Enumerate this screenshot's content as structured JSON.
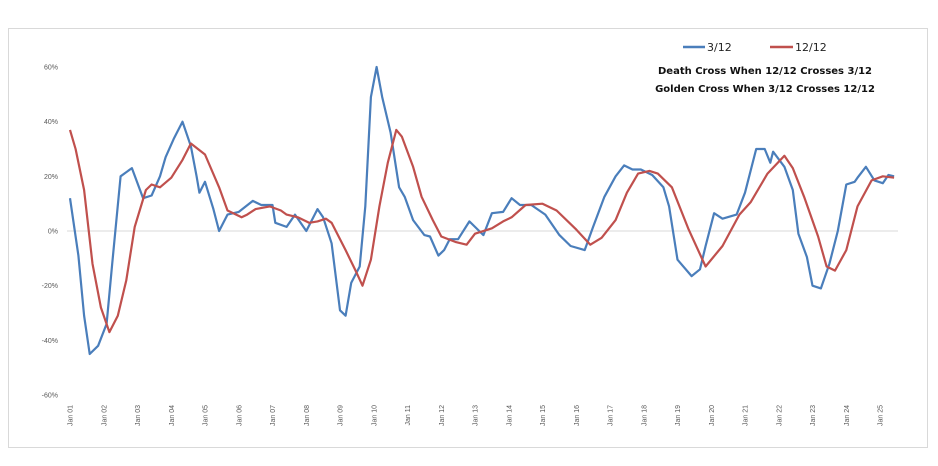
{
  "chart_data": {
    "type": "line",
    "title": "",
    "xlabel": "",
    "ylabel": "",
    "ylim": [
      -60,
      60
    ],
    "xlim": [
      "2001-01",
      "2025-07"
    ],
    "grid": false,
    "zero_line": true,
    "legend_position": "top-right",
    "y_ticks": [
      "-60%",
      "-40%",
      "-20%",
      "0%",
      "20%",
      "40%",
      "60%"
    ],
    "y_tick_values": [
      -60,
      -40,
      -20,
      0,
      20,
      40,
      60
    ],
    "x_ticks": [
      "Jan 01",
      "Jan 02",
      "Jan 03",
      "Jan 04",
      "Jan 05",
      "Jan 06",
      "Jan 07",
      "Jan 08",
      "Jan 09",
      "Jan 10",
      "Jan 11",
      "Jan 12",
      "Jan 13",
      "Jan 14",
      "Jan 15",
      "Jan 16",
      "Jan 17",
      "Jan 18",
      "Jan 19",
      "Jan 20",
      "Jan 21",
      "Jan 22",
      "Jan 23",
      "Jan 24",
      "Jan 25"
    ],
    "annotations": [
      "Death Cross When 12/12 Crosses 3/12",
      "Golden Cross When 3/12 Crosses 12/12"
    ],
    "series": [
      {
        "name": "3/12",
        "color": "#4a7ebb",
        "points": [
          [
            "2001-01",
            12
          ],
          [
            "2001-04",
            -9
          ],
          [
            "2001-06",
            -31
          ],
          [
            "2001-08",
            -45
          ],
          [
            "2001-11",
            -42
          ],
          [
            "2002-02",
            -34
          ],
          [
            "2002-04",
            -12
          ],
          [
            "2002-07",
            20
          ],
          [
            "2002-11",
            23
          ],
          [
            "2003-03",
            12
          ],
          [
            "2003-06",
            13
          ],
          [
            "2003-09",
            20
          ],
          [
            "2003-11",
            27
          ],
          [
            "2004-02",
            34
          ],
          [
            "2004-05",
            40
          ],
          [
            "2004-08",
            31
          ],
          [
            "2004-10",
            20
          ],
          [
            "2004-11",
            14
          ],
          [
            "2005-01",
            18
          ],
          [
            "2005-04",
            8
          ],
          [
            "2005-06",
            0
          ],
          [
            "2005-09",
            6
          ],
          [
            "2006-01",
            7
          ],
          [
            "2006-06",
            11
          ],
          [
            "2006-09",
            9.5
          ],
          [
            "2007-01",
            9.5
          ],
          [
            "2007-02",
            3
          ],
          [
            "2007-06",
            1.5
          ],
          [
            "2007-09",
            6
          ],
          [
            "2008-01",
            0
          ],
          [
            "2008-05",
            8
          ],
          [
            "2008-07",
            5
          ],
          [
            "2008-10",
            -4.5
          ],
          [
            "2009-01",
            -29
          ],
          [
            "2009-03",
            -31
          ],
          [
            "2009-05",
            -19
          ],
          [
            "2009-08",
            -13
          ],
          [
            "2009-10",
            9
          ],
          [
            "2009-12",
            49
          ],
          [
            "2010-02",
            60
          ],
          [
            "2010-04",
            49
          ],
          [
            "2010-07",
            36
          ],
          [
            "2010-10",
            16
          ],
          [
            "2010-12",
            12.5
          ],
          [
            "2011-03",
            4
          ],
          [
            "2011-07",
            -1.5
          ],
          [
            "2011-09",
            -2
          ],
          [
            "2011-12",
            -9
          ],
          [
            "2012-02",
            -7
          ],
          [
            "2012-04",
            -3
          ],
          [
            "2012-07",
            -3
          ],
          [
            "2012-11",
            3.5
          ],
          [
            "2013-01",
            1.5
          ],
          [
            "2013-04",
            -1.5
          ],
          [
            "2013-07",
            6.5
          ],
          [
            "2013-11",
            7
          ],
          [
            "2014-02",
            12
          ],
          [
            "2014-05",
            9.5
          ],
          [
            "2014-09",
            9.5
          ],
          [
            "2015-02",
            6
          ],
          [
            "2015-07",
            -1.5
          ],
          [
            "2015-11",
            -5.5
          ],
          [
            "2016-04",
            -7
          ],
          [
            "2016-07",
            1.5
          ],
          [
            "2016-11",
            12.5
          ],
          [
            "2017-03",
            20
          ],
          [
            "2017-06",
            24
          ],
          [
            "2017-09",
            22.5
          ],
          [
            "2017-12",
            22.5
          ],
          [
            "2018-04",
            20.5
          ],
          [
            "2018-08",
            16
          ],
          [
            "2018-10",
            9
          ],
          [
            "2019-01",
            -10.5
          ],
          [
            "2019-06",
            -16.5
          ],
          [
            "2019-09",
            -14
          ],
          [
            "2019-11",
            -5.5
          ],
          [
            "2020-02",
            6.5
          ],
          [
            "2020-05",
            4.5
          ],
          [
            "2020-10",
            6
          ],
          [
            "2021-01",
            14
          ],
          [
            "2021-05",
            30
          ],
          [
            "2021-08",
            30
          ],
          [
            "2021-10",
            25
          ],
          [
            "2021-11",
            29
          ],
          [
            "2022-03",
            23.5
          ],
          [
            "2022-06",
            15
          ],
          [
            "2022-08",
            -1
          ],
          [
            "2022-11",
            -9.5
          ],
          [
            "2023-01",
            -20
          ],
          [
            "2023-04",
            -21
          ],
          [
            "2023-07",
            -12
          ],
          [
            "2023-10",
            0
          ],
          [
            "2024-01",
            17
          ],
          [
            "2024-04",
            18
          ],
          [
            "2024-05",
            19.5
          ],
          [
            "2024-08",
            23.5
          ],
          [
            "2024-11",
            18.5
          ],
          [
            "2025-02",
            17.5
          ],
          [
            "2025-04",
            20.5
          ],
          [
            "2025-06",
            20
          ]
        ]
      },
      {
        "name": "12/12",
        "color": "#c0504d",
        "points": [
          [
            "2001-01",
            37
          ],
          [
            "2001-03",
            30
          ],
          [
            "2001-06",
            15
          ],
          [
            "2001-09",
            -12
          ],
          [
            "2001-12",
            -28
          ],
          [
            "2002-03",
            -37
          ],
          [
            "2002-06",
            -31
          ],
          [
            "2002-09",
            -18
          ],
          [
            "2002-12",
            1.5
          ],
          [
            "2003-04",
            15
          ],
          [
            "2003-06",
            17
          ],
          [
            "2003-09",
            16
          ],
          [
            "2004-01",
            19.5
          ],
          [
            "2004-05",
            26
          ],
          [
            "2004-08",
            32
          ],
          [
            "2005-01",
            28
          ],
          [
            "2005-06",
            16
          ],
          [
            "2005-09",
            7.5
          ],
          [
            "2006-02",
            5
          ],
          [
            "2006-04",
            6
          ],
          [
            "2006-07",
            8
          ],
          [
            "2006-12",
            9
          ],
          [
            "2007-04",
            7.5
          ],
          [
            "2007-06",
            6
          ],
          [
            "2007-10",
            5
          ],
          [
            "2008-02",
            3
          ],
          [
            "2008-05",
            3.5
          ],
          [
            "2008-08",
            4.5
          ],
          [
            "2008-10",
            3
          ],
          [
            "2009-03",
            -7
          ],
          [
            "2009-07",
            -15.5
          ],
          [
            "2009-09",
            -20
          ],
          [
            "2009-12",
            -10.5
          ],
          [
            "2010-03",
            9
          ],
          [
            "2010-06",
            25
          ],
          [
            "2010-09",
            37
          ],
          [
            "2010-11",
            34.5
          ],
          [
            "2011-03",
            23.5
          ],
          [
            "2011-06",
            12.5
          ],
          [
            "2011-10",
            4
          ],
          [
            "2012-01",
            -2
          ],
          [
            "2012-06",
            -4
          ],
          [
            "2012-10",
            -5
          ],
          [
            "2013-01",
            -1
          ],
          [
            "2013-07",
            1
          ],
          [
            "2013-11",
            3.5
          ],
          [
            "2014-02",
            5
          ],
          [
            "2014-07",
            9.5
          ],
          [
            "2015-01",
            10
          ],
          [
            "2015-06",
            7.5
          ],
          [
            "2016-01",
            0.5
          ],
          [
            "2016-06",
            -5
          ],
          [
            "2016-10",
            -2.5
          ],
          [
            "2017-03",
            4
          ],
          [
            "2017-07",
            14
          ],
          [
            "2017-11",
            21
          ],
          [
            "2018-03",
            22
          ],
          [
            "2018-06",
            21
          ],
          [
            "2018-11",
            16
          ],
          [
            "2019-05",
            0.5
          ],
          [
            "2019-11",
            -13
          ],
          [
            "2020-05",
            -5.5
          ],
          [
            "2020-11",
            6
          ],
          [
            "2021-03",
            10.5
          ],
          [
            "2021-09",
            21
          ],
          [
            "2022-03",
            27.5
          ],
          [
            "2022-06",
            23
          ],
          [
            "2022-10",
            12.5
          ],
          [
            "2023-03",
            -2
          ],
          [
            "2023-06",
            -13
          ],
          [
            "2023-09",
            -14.5
          ],
          [
            "2024-01",
            -7
          ],
          [
            "2024-05",
            9
          ],
          [
            "2024-10",
            18.5
          ],
          [
            "2025-02",
            20
          ],
          [
            "2025-06",
            19.5
          ]
        ]
      }
    ]
  }
}
